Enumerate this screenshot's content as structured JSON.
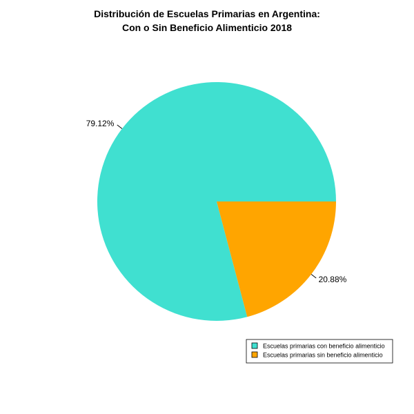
{
  "chart_data": {
    "type": "pie",
    "title_lines": [
      "Distribución de Escuelas Primarias en Argentina:",
      "Con o Sin Beneficio Alimenticio 2018"
    ],
    "slices": [
      {
        "label": "Escuelas primarias con beneficio alimenticio",
        "value": 79.12,
        "display": "79.12%",
        "color": "#40E0D0"
      },
      {
        "label": "Escuelas primarias sin beneficio alimenticio",
        "value": 20.88,
        "display": "20.88%",
        "color": "#FFA500"
      }
    ],
    "start_angle_deg": 0,
    "direction": "counterclockwise",
    "legend_position": "bottom-right"
  }
}
